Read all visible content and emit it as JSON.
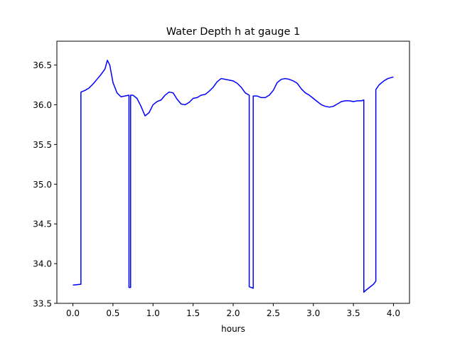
{
  "chart_data": {
    "type": "line",
    "title": "Water Depth h at gauge 1",
    "xlabel": "hours",
    "ylabel": "",
    "xlim": [
      -0.2,
      4.2
    ],
    "ylim": [
      33.5,
      36.8
    ],
    "xticks": [
      0.0,
      0.5,
      1.0,
      1.5,
      2.0,
      2.5,
      3.0,
      3.5,
      4.0
    ],
    "xtick_labels": [
      "0.0",
      "0.5",
      "1.0",
      "1.5",
      "2.0",
      "2.5",
      "3.0",
      "3.5",
      "4.0"
    ],
    "yticks": [
      33.5,
      34.0,
      34.5,
      35.0,
      35.5,
      36.0,
      36.5
    ],
    "ytick_labels": [
      "33.5",
      "34.0",
      "34.5",
      "35.0",
      "35.5",
      "36.0",
      "36.5"
    ],
    "grid": false,
    "legend": "none",
    "series": [
      {
        "color": "#0000ff",
        "x": [
          0.0,
          0.1,
          0.1,
          0.15,
          0.2,
          0.25,
          0.3,
          0.35,
          0.4,
          0.43,
          0.46,
          0.5,
          0.55,
          0.6,
          0.65,
          0.7,
          0.7,
          0.72,
          0.72,
          0.75,
          0.8,
          0.85,
          0.9,
          0.95,
          1.0,
          1.05,
          1.1,
          1.15,
          1.2,
          1.25,
          1.3,
          1.35,
          1.4,
          1.45,
          1.5,
          1.55,
          1.6,
          1.65,
          1.7,
          1.75,
          1.8,
          1.85,
          1.9,
          1.95,
          2.0,
          2.05,
          2.1,
          2.15,
          2.2,
          2.2,
          2.25,
          2.25,
          2.3,
          2.35,
          2.4,
          2.45,
          2.5,
          2.55,
          2.6,
          2.65,
          2.7,
          2.75,
          2.8,
          2.85,
          2.9,
          2.95,
          3.0,
          3.05,
          3.1,
          3.15,
          3.2,
          3.25,
          3.3,
          3.35,
          3.4,
          3.45,
          3.5,
          3.55,
          3.6,
          3.63,
          3.63,
          3.65,
          3.7,
          3.75,
          3.78,
          3.78,
          3.82,
          3.88,
          3.93,
          4.0
        ],
        "y": [
          33.73,
          33.74,
          36.16,
          36.18,
          36.21,
          36.26,
          36.32,
          36.38,
          36.45,
          36.56,
          36.5,
          36.28,
          36.15,
          36.1,
          36.11,
          36.12,
          33.7,
          33.7,
          36.12,
          36.12,
          36.08,
          35.98,
          35.86,
          35.9,
          36.0,
          36.04,
          36.06,
          36.12,
          36.16,
          36.15,
          36.07,
          36.01,
          36.0,
          36.03,
          36.08,
          36.09,
          36.12,
          36.13,
          36.17,
          36.22,
          36.29,
          36.33,
          36.32,
          36.31,
          36.3,
          36.27,
          36.22,
          36.15,
          36.12,
          33.71,
          33.69,
          36.11,
          36.11,
          36.09,
          36.09,
          36.12,
          36.18,
          36.28,
          36.32,
          36.33,
          36.32,
          36.3,
          36.27,
          36.2,
          36.15,
          36.12,
          36.08,
          36.04,
          36.0,
          35.98,
          35.97,
          35.98,
          36.01,
          36.04,
          36.05,
          36.05,
          36.04,
          36.05,
          36.05,
          36.06,
          33.64,
          33.66,
          33.7,
          33.74,
          33.78,
          36.19,
          36.25,
          36.3,
          36.33,
          36.35
        ]
      }
    ]
  }
}
